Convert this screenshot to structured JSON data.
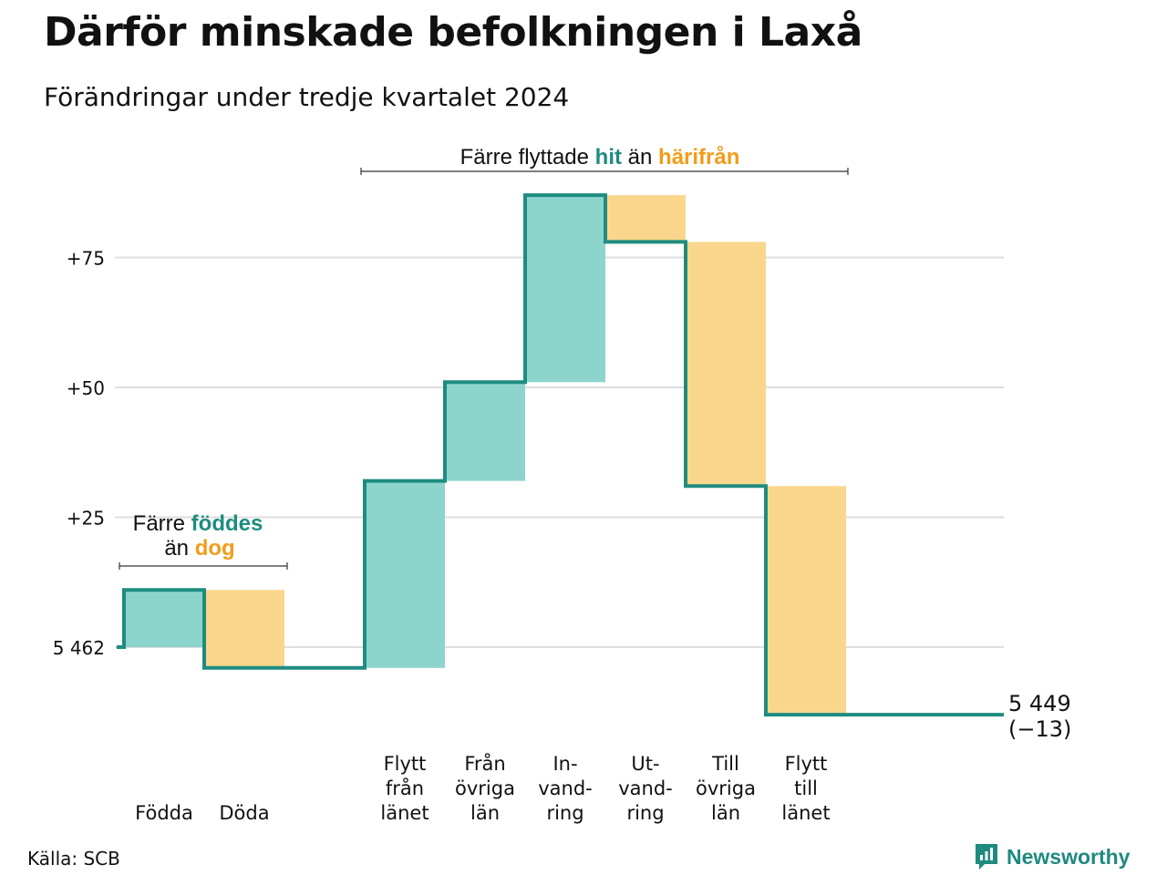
{
  "title": "Därför minskade befolkningen i Laxå",
  "subtitle": "Förändringar under tredje kvartalet 2024",
  "source": "Källa: SCB",
  "brand": "Newsworthy",
  "colors": {
    "line": "#1e8c80",
    "increase": "#8dd5cc",
    "decrease": "#fad68c",
    "grid": "#dedede",
    "text_green": "#1e8c80",
    "text_orange": "#f29c1a"
  },
  "chart_data": {
    "type": "waterfall",
    "start": {
      "value": 5462,
      "label": "5 462"
    },
    "end": {
      "value": 5449,
      "label_value": "5 449",
      "label_change": "(−13)"
    },
    "y_ticks": [
      {
        "offset": 25,
        "label": "+25"
      },
      {
        "offset": 50,
        "label": "+50"
      },
      {
        "offset": 75,
        "label": "+75"
      }
    ],
    "y_offset_range": [
      -13,
      87
    ],
    "steps": [
      {
        "label": [
          "Födda"
        ],
        "change": 11,
        "kind": "increase"
      },
      {
        "label": [
          "Döda"
        ],
        "change": -15,
        "kind": "decrease"
      },
      {
        "label": [],
        "change": 0,
        "kind": "gap"
      },
      {
        "label": [
          "Flytt",
          "från",
          "länet"
        ],
        "change": 36,
        "kind": "increase"
      },
      {
        "label": [
          "Från",
          "övriga",
          "län"
        ],
        "change": 19,
        "kind": "increase"
      },
      {
        "label": [
          "In-",
          "vand-",
          "ring"
        ],
        "change": 36,
        "kind": "increase"
      },
      {
        "label": [
          "Ut-",
          "vand-",
          "ring"
        ],
        "change": -9,
        "kind": "decrease"
      },
      {
        "label": [
          "Till",
          "övriga",
          "län"
        ],
        "change": -47,
        "kind": "decrease"
      },
      {
        "label": [
          "Flytt",
          "till",
          "länet"
        ],
        "change": -44,
        "kind": "decrease"
      }
    ],
    "annotations": [
      {
        "parts": [
          {
            "text": "Färre ",
            "color": "dark"
          },
          {
            "text": "föddes",
            "color": "green"
          }
        ],
        "line2": [
          {
            "text": "än ",
            "color": "dark"
          },
          {
            "text": "dog",
            "color": "orange"
          }
        ]
      },
      {
        "parts": [
          {
            "text": "Färre flyttade ",
            "color": "dark"
          },
          {
            "text": "hit",
            "color": "green"
          },
          {
            "text": " än ",
            "color": "dark"
          },
          {
            "text": "härifrån",
            "color": "orange"
          }
        ]
      }
    ]
  }
}
